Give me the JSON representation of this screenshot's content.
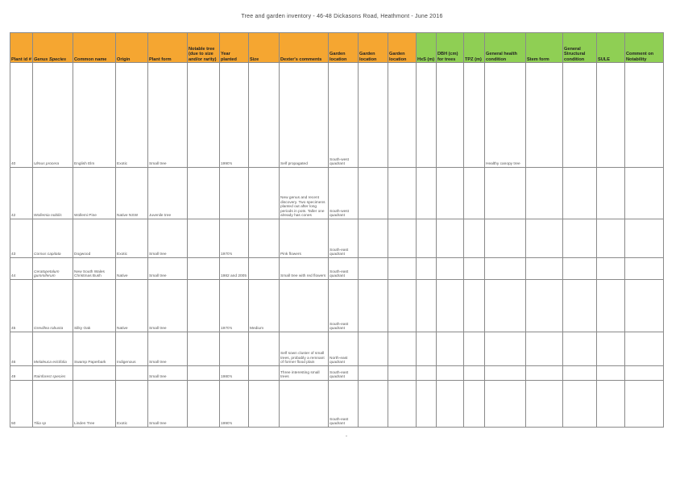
{
  "title": "Tree and garden inventory - 46-48 Dickasons Road, Heathmont - June 2016",
  "columns": [
    {
      "label": "Plant id #",
      "color": "orange"
    },
    {
      "label": "Genus Species",
      "color": "orange",
      "italic_part": true
    },
    {
      "label": "Common name",
      "color": "orange"
    },
    {
      "label": "Origin",
      "color": "orange"
    },
    {
      "label": "Plant form",
      "color": "orange"
    },
    {
      "label": "Notable tree (due to size and/or rarity)",
      "color": "orange"
    },
    {
      "label": "Year planted",
      "color": "orange"
    },
    {
      "label": "Size",
      "color": "orange"
    },
    {
      "label": "Dexter's comments",
      "color": "orange"
    },
    {
      "label": "Garden location",
      "color": "orange"
    },
    {
      "label": "Garden location",
      "color": "orange"
    },
    {
      "label": "Garden location",
      "color": "orange"
    },
    {
      "label": "HxS (m)",
      "color": "green"
    },
    {
      "label": "DBH (cm) for trees",
      "color": "green"
    },
    {
      "label": "TPZ (m)",
      "color": "green"
    },
    {
      "label": "General health condition",
      "color": "green"
    },
    {
      "label": "Stem form",
      "color": "green"
    },
    {
      "label": "General Structural condition",
      "color": "green"
    },
    {
      "label": "SULE",
      "color": "green"
    },
    {
      "label": "Comment on Notability",
      "color": "green"
    }
  ],
  "header_label_parts": {
    "plant_id": "Plant id",
    "hash": "#",
    "genus": "Genus Species"
  },
  "rows": [
    {
      "id": "40",
      "genus": "Ulmus procera",
      "common": "English Elm",
      "origin": "Exotic",
      "form": "Small tree",
      "notable": "",
      "year": "1990's",
      "size": "",
      "comments": "Self propagated",
      "location": "South-west quadrant",
      "health": "Healthy canopy tree"
    },
    {
      "id": "42",
      "genus": "Wollemia nobilis",
      "common": "Wollemi Pine",
      "origin": "Native NSW",
      "form": "Juvenile tree",
      "notable": "",
      "year": "",
      "size": "",
      "comments": "New genus and recent discovery. Two specimens planted out after long periods in pots. Taller one already has cones",
      "location": "South-west quadrant",
      "health": ""
    },
    {
      "id": "43",
      "genus": "Cornus capitata",
      "common": "Dogwood",
      "origin": "Exotic",
      "form": "Small tree",
      "notable": "",
      "year": "1970's",
      "size": "",
      "comments": "Pink flowers",
      "location": "South-east quadrant",
      "health": ""
    },
    {
      "id": "44",
      "genus": "Ceratopetalum gummiferum",
      "common": "New South Wales Christmas Bush",
      "origin": "Native",
      "form": "Small tree",
      "notable": "",
      "year": "1982 and 2005",
      "size": "",
      "comments": "Small tree with red flowers",
      "location": "South-east quadrant",
      "health": ""
    },
    {
      "id": "45",
      "genus": "Grevillea robusta",
      "common": "Silky Oak",
      "origin": "Native",
      "form": "Small tree",
      "notable": "",
      "year": "1970's",
      "size": "Medium",
      "comments": "",
      "location": "South-east quadrant",
      "health": ""
    },
    {
      "id": "46",
      "genus": "Melaleuca ericifolia",
      "common": "Swamp Paperbark",
      "origin": "Indigenous",
      "form": "Small tree",
      "notable": "",
      "year": "",
      "size": "",
      "comments": "Self sown cluster of small trees, probably a remnant of former flood plain",
      "location": "North-east quadrant",
      "health": ""
    },
    {
      "id": "49",
      "genus": "Rainforest species",
      "common": "",
      "origin": "",
      "form": "Small tree",
      "notable": "",
      "year": "1980's",
      "size": "",
      "comments": "Three interesting small trees",
      "location": "South-east quadrant",
      "health": ""
    },
    {
      "id": "50",
      "genus": "Tilia sp",
      "common": "Linden Tree",
      "origin": "Exotic",
      "form": "Small tree",
      "notable": "",
      "year": "1990's",
      "size": "",
      "comments": "",
      "location": "South-east quadrant",
      "health": ""
    }
  ]
}
